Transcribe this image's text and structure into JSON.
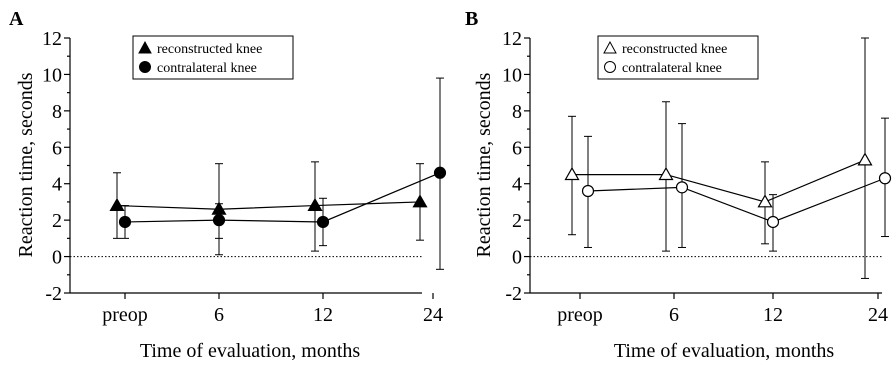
{
  "chart_data": [
    {
      "type": "line",
      "panel_label": "A",
      "xlabel": "Time of evaluation, months",
      "ylabel": "Reaction time, seconds",
      "categories": [
        "preop",
        "6",
        "12",
        "24"
      ],
      "ylim": [
        -2,
        12
      ],
      "yticks": [
        "-2",
        "0",
        "2",
        "4",
        "6",
        "8",
        "10",
        "12"
      ],
      "reference_line": 0,
      "grid": false,
      "legend_position": "top-center",
      "series": [
        {
          "name": "reconstructed knee",
          "marker": "filled-triangle",
          "values": [
            2.8,
            2.6,
            2.8,
            3.0
          ],
          "err_low": [
            1.0,
            0.1,
            0.3,
            0.9
          ],
          "err_high": [
            4.6,
            5.1,
            5.2,
            5.1
          ]
        },
        {
          "name": "contralateral knee",
          "marker": "filled-circle",
          "values": [
            1.9,
            2.0,
            1.9,
            4.6
          ],
          "err_low": [
            1.0,
            1.0,
            0.6,
            -0.7
          ],
          "err_high": [
            2.8,
            2.9,
            3.2,
            9.8
          ]
        }
      ]
    },
    {
      "type": "line",
      "panel_label": "B",
      "xlabel": "Time of evaluation, months",
      "ylabel": "Reaction time, seconds",
      "categories": [
        "preop",
        "6",
        "12",
        "24"
      ],
      "ylim": [
        -2,
        12
      ],
      "yticks": [
        "-2",
        "0",
        "2",
        "4",
        "6",
        "8",
        "10",
        "12"
      ],
      "reference_line": 0,
      "grid": false,
      "legend_position": "top-center",
      "series": [
        {
          "name": "reconstructed knee",
          "marker": "open-triangle",
          "values": [
            4.5,
            4.5,
            3.0,
            5.3
          ],
          "err_low": [
            1.2,
            0.3,
            0.7,
            -1.2
          ],
          "err_high": [
            7.7,
            8.5,
            5.2,
            12.0
          ]
        },
        {
          "name": "contralateral knee",
          "marker": "open-circle",
          "values": [
            3.6,
            3.8,
            1.9,
            4.3
          ],
          "err_low": [
            0.5,
            0.5,
            0.3,
            1.1
          ],
          "err_high": [
            6.6,
            7.3,
            3.4,
            7.6
          ]
        }
      ]
    }
  ]
}
